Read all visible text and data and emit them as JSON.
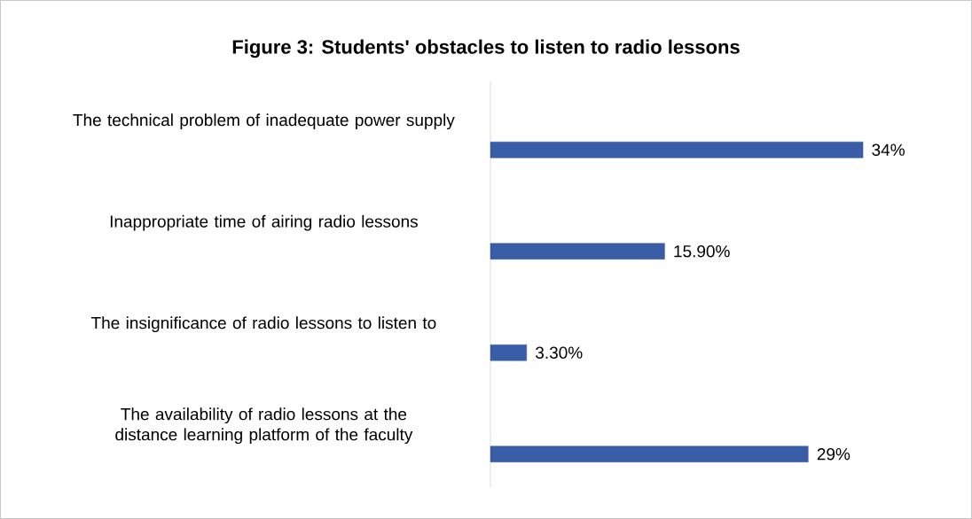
{
  "chart_data": {
    "type": "bar",
    "orientation": "horizontal",
    "title": "Figure 3: Students' obstacles to listen to radio lessons",
    "categories": [
      "The technical problem of inadequate power supply",
      "Inappropriate time of airing radio lessons",
      "The insignificance of radio lessons to listen to",
      "The availability of radio lessons at the distance learning platform of the faculty"
    ],
    "values": [
      34,
      15.9,
      3.3,
      29
    ],
    "value_labels": [
      "34%",
      "15.90%",
      "3.30%",
      "29%"
    ],
    "color": "#3a5da8"
  }
}
